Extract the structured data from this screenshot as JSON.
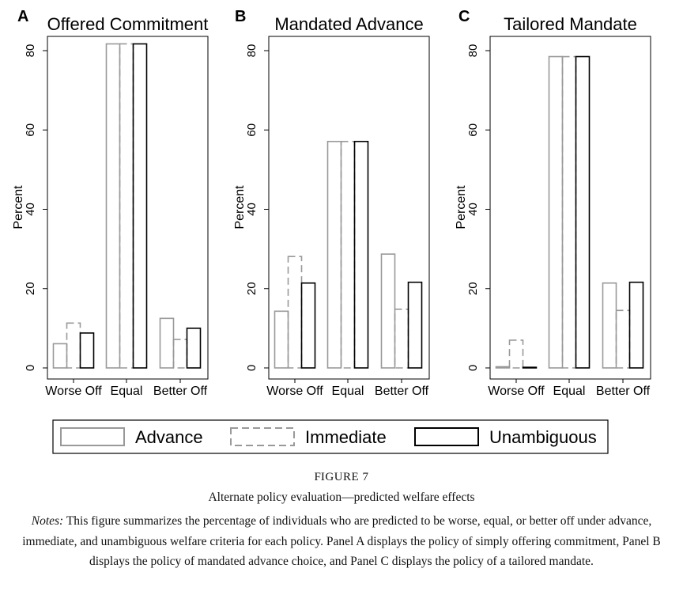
{
  "figure": {
    "label_prefix": "F",
    "label_rest": "IGURE 7",
    "title": "Alternate policy evaluation—predicted welfare effects",
    "notes_label": "Notes:",
    "notes_text": " This figure summarizes the percentage of individuals who are predicted to be worse, equal, or better off under advance, immediate, and unambiguous welfare criteria for each policy. Panel A displays the policy of simply offering commitment, Panel B displays the policy of mandated advance choice, and Panel C displays the policy of a tailored mandate."
  },
  "legend": {
    "placement": "bottom",
    "entries": [
      "Advance",
      "Immediate",
      "Unambiguous"
    ]
  },
  "colors": {
    "advance": "#999999",
    "immediate": "#999999",
    "unambiguous": "#000000",
    "axis": "#000000"
  },
  "chart_data": [
    {
      "type": "bar",
      "panel": "A",
      "title": "Offered Commitment",
      "ylabel": "Percent",
      "xlabel": "",
      "ylim": [
        0,
        80
      ],
      "yticks": [
        "0",
        "20",
        "40",
        "60",
        "80"
      ],
      "grid": false,
      "categories": [
        "Worse Off",
        "Equal",
        "Better Off"
      ],
      "series": [
        {
          "name": "Advance",
          "values": [
            6.1,
            81.7,
            12.5
          ]
        },
        {
          "name": "Immediate",
          "values": [
            11.3,
            81.7,
            7.2
          ]
        },
        {
          "name": "Unambiguous",
          "values": [
            8.8,
            81.7,
            10.0
          ]
        }
      ]
    },
    {
      "type": "bar",
      "panel": "B",
      "title": "Mandated Advance",
      "ylabel": "Percent",
      "xlabel": "",
      "ylim": [
        0,
        80
      ],
      "yticks": [
        "0",
        "20",
        "40",
        "60",
        "80"
      ],
      "grid": false,
      "categories": [
        "Worse Off",
        "Equal",
        "Better Off"
      ],
      "series": [
        {
          "name": "Advance",
          "values": [
            14.3,
            57.1,
            28.7
          ]
        },
        {
          "name": "Immediate",
          "values": [
            28.1,
            57.1,
            14.8
          ]
        },
        {
          "name": "Unambiguous",
          "values": [
            21.4,
            57.1,
            21.6
          ]
        }
      ]
    },
    {
      "type": "bar",
      "panel": "C",
      "title": "Tailored Mandate",
      "ylabel": "Percent",
      "xlabel": "",
      "ylim": [
        0,
        80
      ],
      "yticks": [
        "0",
        "20",
        "40",
        "60",
        "80"
      ],
      "grid": false,
      "categories": [
        "Worse Off",
        "Equal",
        "Better Off"
      ],
      "series": [
        {
          "name": "Advance",
          "values": [
            0.3,
            78.5,
            21.4
          ]
        },
        {
          "name": "Immediate",
          "values": [
            7.0,
            78.5,
            14.5
          ]
        },
        {
          "name": "Unambiguous",
          "values": [
            0,
            78.5,
            21.6
          ]
        }
      ]
    }
  ]
}
